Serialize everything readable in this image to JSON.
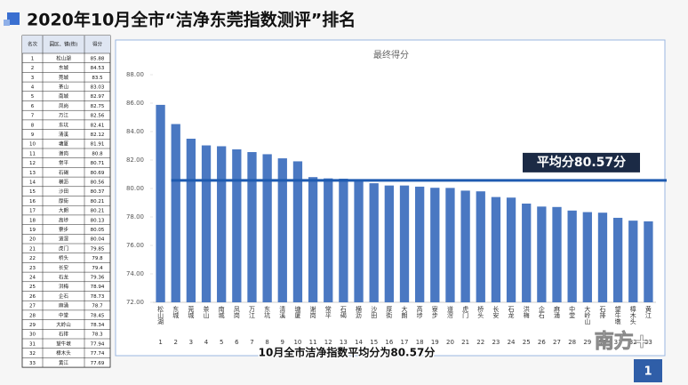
{
  "header": {
    "title": "2020年10月全市“洁净东莞指数测评”排名"
  },
  "table": {
    "headers": [
      "名次",
      "园区、镇(街)",
      "得分"
    ],
    "rows": [
      [
        1,
        "松山湖",
        85.88
      ],
      [
        2,
        "东城",
        84.53
      ],
      [
        3,
        "莞城",
        83.5
      ],
      [
        4,
        "茶山",
        83.03
      ],
      [
        5,
        "南城",
        82.97
      ],
      [
        6,
        "凤岗",
        82.75
      ],
      [
        7,
        "万江",
        82.56
      ],
      [
        8,
        "东坑",
        82.41
      ],
      [
        9,
        "清溪",
        82.12
      ],
      [
        10,
        "塘厦",
        81.91
      ],
      [
        11,
        "谢岗",
        80.8
      ],
      [
        12,
        "常平",
        80.71
      ],
      [
        13,
        "石碣",
        80.69
      ],
      [
        14,
        "横沥",
        80.56
      ],
      [
        15,
        "沙田",
        80.37
      ],
      [
        16,
        "厚街",
        80.21
      ],
      [
        17,
        "大朗",
        80.21
      ],
      [
        18,
        "高埗",
        80.13
      ],
      [
        19,
        "寮步",
        80.05
      ],
      [
        20,
        "道滘",
        80.04
      ],
      [
        21,
        "虎门",
        79.85
      ],
      [
        22,
        "桥头",
        79.8
      ],
      [
        23,
        "长安",
        79.4
      ],
      [
        24,
        "石龙",
        79.36
      ],
      [
        25,
        "洪梅",
        78.94
      ],
      [
        26,
        "企石",
        78.73
      ],
      [
        27,
        "麻涌",
        78.7
      ],
      [
        28,
        "中堂",
        78.45
      ],
      [
        29,
        "大岭山",
        78.34
      ],
      [
        30,
        "石排",
        78.3
      ],
      [
        31,
        "望牛墩",
        77.94
      ],
      [
        32,
        "樟木头",
        77.74
      ],
      [
        33,
        "黄江",
        77.69
      ]
    ]
  },
  "chart_data": {
    "type": "bar",
    "title": "最终得分",
    "categories": [
      "松山湖",
      "东城",
      "莞城",
      "茶山",
      "南城",
      "凤岗",
      "万江",
      "东坑",
      "清溪",
      "塘厦",
      "谢岗",
      "常平",
      "石碣",
      "横沥",
      "沙田",
      "厚街",
      "大朗",
      "高埗",
      "寮步",
      "道滘",
      "虎门",
      "桥头",
      "长安",
      "石龙",
      "洪梅",
      "企石",
      "麻涌",
      "中堂",
      "大岭山",
      "石排",
      "望牛墩",
      "樟木头",
      "黄江"
    ],
    "values": [
      85.88,
      84.53,
      83.5,
      83.03,
      82.97,
      82.75,
      82.56,
      82.41,
      82.12,
      81.91,
      80.8,
      80.71,
      80.69,
      80.56,
      80.37,
      80.21,
      80.21,
      80.13,
      80.05,
      80.04,
      79.85,
      79.8,
      79.4,
      79.36,
      78.94,
      78.73,
      78.7,
      78.45,
      78.34,
      78.3,
      77.94,
      77.74,
      77.69
    ],
    "color": "#4a78c2",
    "ylim": [
      72,
      88
    ],
    "yticks": [
      {
        "value": 72,
        "label": "72.00"
      },
      {
        "value": 74,
        "label": "74.00"
      },
      {
        "value": 76,
        "label": "76.00"
      },
      {
        "value": 78,
        "label": "78.00"
      },
      {
        "value": 80,
        "label": "80.00"
      },
      {
        "value": 82,
        "label": "82.00"
      },
      {
        "value": 84,
        "label": "84.00"
      },
      {
        "value": 86,
        "label": "86.00"
      },
      {
        "value": 88,
        "label": "88.00"
      }
    ],
    "grid": false,
    "average": 80.57,
    "annotation": "平均分80.57分"
  },
  "caption": "10月全市洁净指数平均分为80.57分",
  "page_number": "1",
  "watermark": "南方+"
}
